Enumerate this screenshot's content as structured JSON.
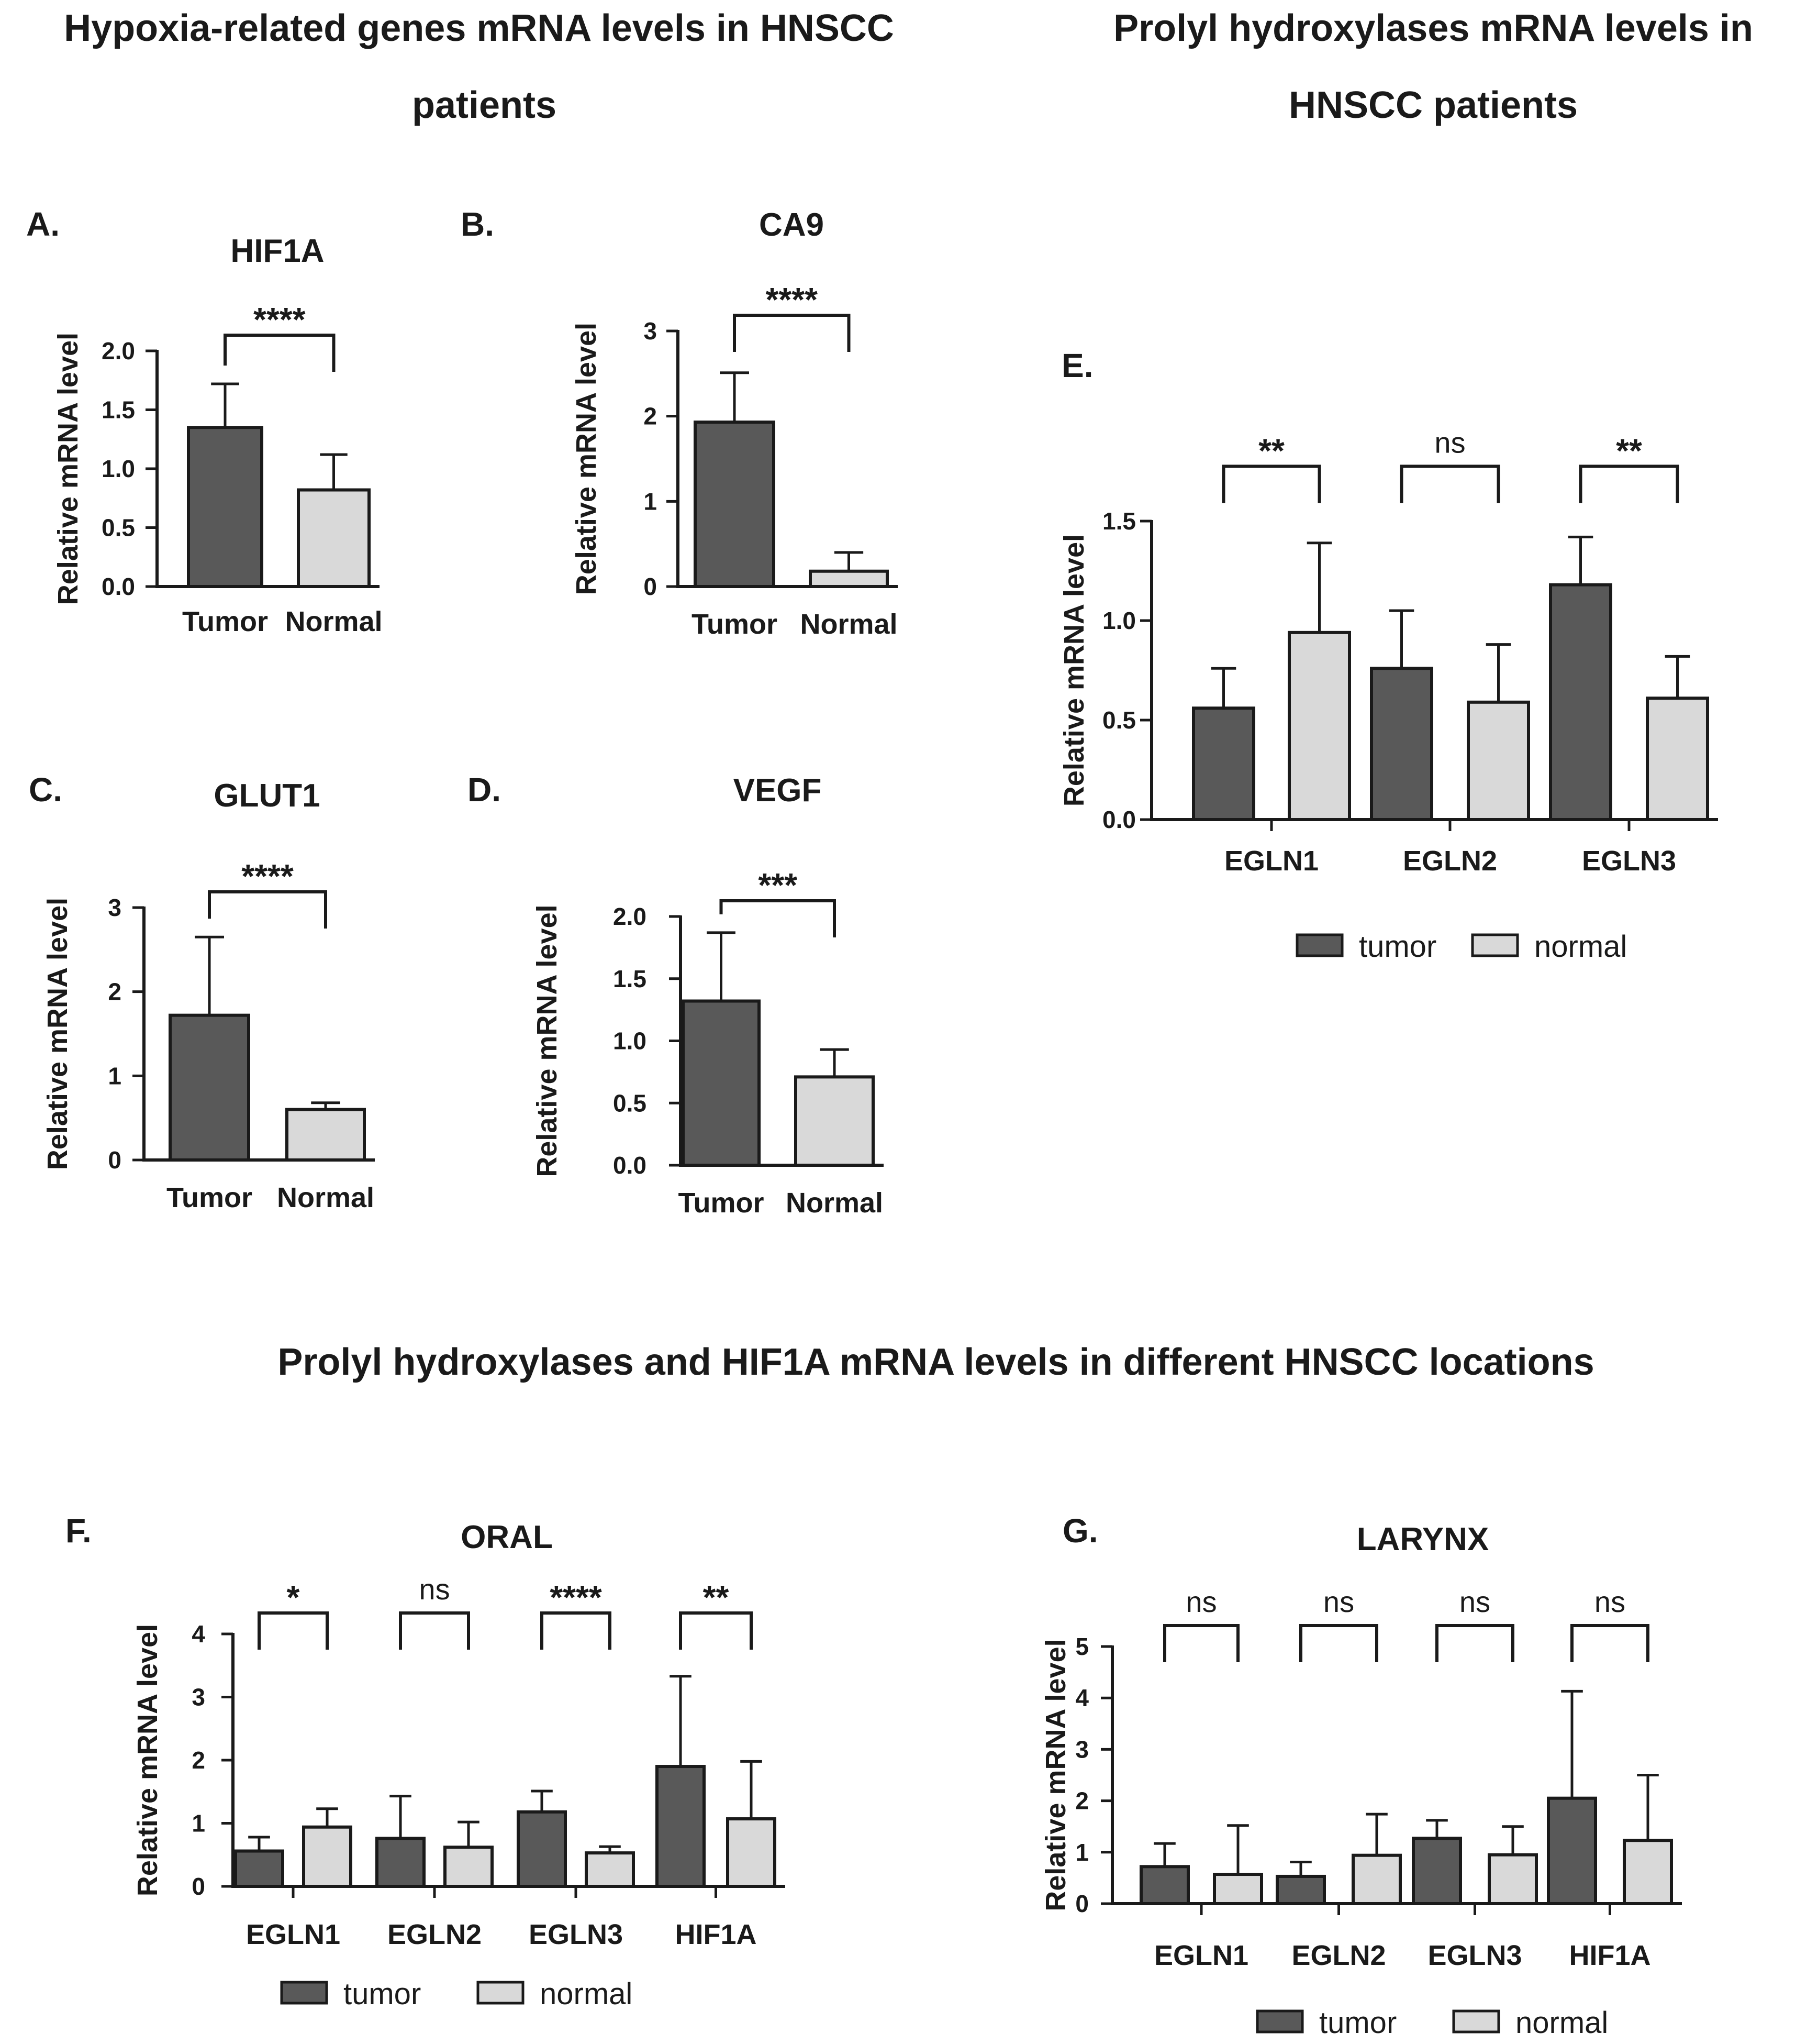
{
  "section_titles": {
    "hypoxia": [
      "Hypoxia-related genes mRNA levels in HNSCC",
      "patients"
    ],
    "prolyl": [
      "Prolyl hydroxylases mRNA levels in",
      "HNSCC patients"
    ],
    "locations": [
      "Prolyl hydroxylases and HIF1A mRNA levels in different HNSCC locations"
    ]
  },
  "colors": {
    "tumor": "#595959",
    "normal": "#d9d9d9",
    "stroke": "#1a1a1a"
  },
  "chart_data": [
    {
      "id": "A",
      "panel_label": "A.",
      "type": "bar",
      "title": "HIF1A",
      "ylabel": "Relative mRNA level",
      "ylim": [
        0,
        2.0
      ],
      "yticks": [
        0.0,
        0.5,
        1.0,
        1.5,
        2.0
      ],
      "tick_decimals": 1,
      "categories": [
        "Tumor",
        "Normal"
      ],
      "values": [
        1.35,
        0.82
      ],
      "errors": [
        0.37,
        0.3
      ],
      "comparisons": [
        {
          "from": 0,
          "to": 1,
          "label": "****"
        }
      ]
    },
    {
      "id": "B",
      "panel_label": "B.",
      "type": "bar",
      "title": "CA9",
      "ylabel": "Relative mRNA level",
      "ylim": [
        0,
        3
      ],
      "yticks": [
        0,
        1,
        2,
        3
      ],
      "tick_decimals": 0,
      "categories": [
        "Tumor",
        "Normal"
      ],
      "values": [
        1.93,
        0.18
      ],
      "errors": [
        0.58,
        0.22
      ],
      "comparisons": [
        {
          "from": 0,
          "to": 1,
          "label": "****"
        }
      ]
    },
    {
      "id": "C",
      "panel_label": "C.",
      "type": "bar",
      "title": "GLUT1",
      "ylabel": "Relative mRNA level",
      "ylim": [
        0,
        3
      ],
      "yticks": [
        0,
        1,
        2,
        3
      ],
      "tick_decimals": 0,
      "categories": [
        "Tumor",
        "Normal"
      ],
      "values": [
        1.72,
        0.6
      ],
      "errors": [
        0.93,
        0.08
      ],
      "comparisons": [
        {
          "from": 0,
          "to": 1,
          "label": "****"
        }
      ]
    },
    {
      "id": "D",
      "panel_label": "D.",
      "type": "bar",
      "title": "VEGF",
      "ylabel": "Relative mRNA level",
      "ylim": [
        0,
        2.0
      ],
      "yticks": [
        0.0,
        0.5,
        1.0,
        1.5,
        2.0
      ],
      "tick_decimals": 1,
      "categories": [
        "Tumor",
        "Normal"
      ],
      "values": [
        1.32,
        0.71
      ],
      "errors": [
        0.55,
        0.22
      ],
      "comparisons": [
        {
          "from": 0,
          "to": 1,
          "label": "***"
        }
      ]
    },
    {
      "id": "E",
      "panel_label": "E.",
      "type": "bar",
      "title": "",
      "ylabel": "Relative mRNA level",
      "ylim": [
        0,
        1.5
      ],
      "yticks": [
        0.0,
        0.5,
        1.0,
        1.5
      ],
      "tick_decimals": 1,
      "categories": [
        "EGLN1",
        "EGLN2",
        "EGLN3"
      ],
      "series": [
        {
          "name": "tumor",
          "values": [
            0.56,
            0.76,
            1.18
          ],
          "errors": [
            0.2,
            0.29,
            0.24
          ]
        },
        {
          "name": "normal",
          "values": [
            0.94,
            0.59,
            0.61
          ],
          "errors": [
            0.45,
            0.29,
            0.21
          ]
        }
      ],
      "comparisons": [
        {
          "group": 0,
          "label": "**",
          "ytop": 1.67
        },
        {
          "group": 1,
          "label": "ns",
          "ytop": 1.67
        },
        {
          "group": 2,
          "label": "**",
          "ytop": 1.67
        }
      ],
      "legend": [
        "tumor",
        "normal"
      ]
    },
    {
      "id": "F",
      "panel_label": "F.",
      "type": "bar",
      "title": "ORAL",
      "ylabel": "Relative mRNA level",
      "ylim": [
        0,
        4
      ],
      "yticks": [
        0,
        1,
        2,
        3,
        4
      ],
      "tick_decimals": 0,
      "categories": [
        "EGLN1",
        "EGLN2",
        "EGLN3",
        "HIF1A"
      ],
      "series": [
        {
          "name": "tumor",
          "values": [
            0.56,
            0.76,
            1.18,
            1.9
          ],
          "errors": [
            0.22,
            0.67,
            0.33,
            1.43
          ]
        },
        {
          "name": "normal",
          "values": [
            0.94,
            0.62,
            0.53,
            1.07
          ],
          "errors": [
            0.29,
            0.4,
            0.1,
            0.91
          ]
        }
      ],
      "comparisons": [
        {
          "group": 0,
          "label": "*",
          "ytop": 4.0
        },
        {
          "group": 1,
          "label": "ns",
          "ytop": 4.0
        },
        {
          "group": 2,
          "label": "****",
          "ytop": 4.0
        },
        {
          "group": 3,
          "label": "**",
          "ytop": 4.0
        }
      ],
      "legend": [
        "tumor",
        "normal"
      ]
    },
    {
      "id": "G",
      "panel_label": "G.",
      "type": "bar",
      "title": "LARYNX",
      "ylabel": "Relative mRNA level",
      "ylim": [
        0,
        5
      ],
      "yticks": [
        0,
        1,
        2,
        3,
        4,
        5
      ],
      "tick_decimals": 0,
      "categories": [
        "EGLN1",
        "EGLN2",
        "EGLN3",
        "HIF1A"
      ],
      "series": [
        {
          "name": "tumor",
          "values": [
            0.72,
            0.53,
            1.27,
            2.05
          ],
          "errors": [
            0.45,
            0.28,
            0.35,
            2.08
          ]
        },
        {
          "name": "normal",
          "values": [
            0.57,
            0.94,
            0.95,
            1.23
          ],
          "errors": [
            0.95,
            0.8,
            0.55,
            1.27
          ]
        }
      ],
      "comparisons": [
        {
          "group": 0,
          "label": "ns",
          "ytop": 5.0
        },
        {
          "group": 1,
          "label": "ns",
          "ytop": 5.0
        },
        {
          "group": 2,
          "label": "ns",
          "ytop": 5.0
        },
        {
          "group": 3,
          "label": "ns",
          "ytop": 5.0
        }
      ],
      "legend": [
        "tumor",
        "normal"
      ]
    }
  ]
}
